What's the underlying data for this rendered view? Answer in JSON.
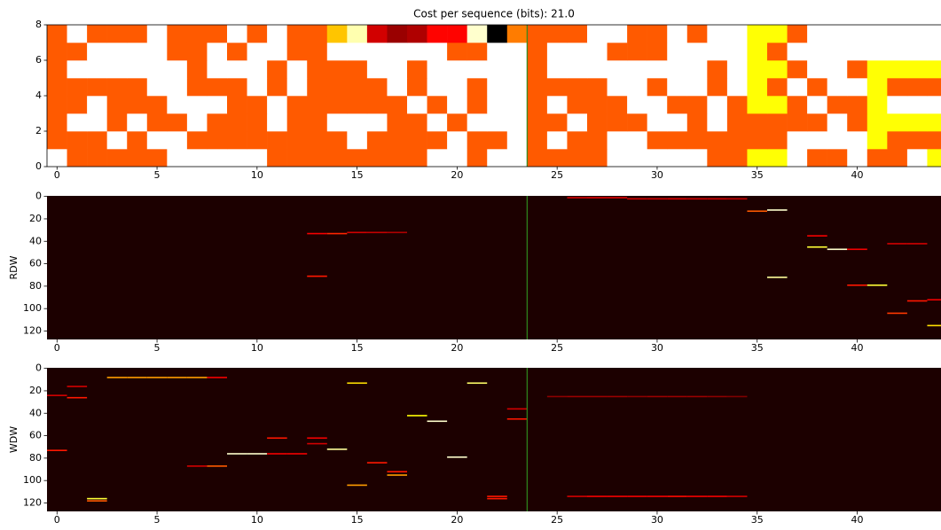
{
  "chart_data": [
    {
      "type": "heatmap",
      "title": "Cost per sequence (bits): 21.0",
      "colormap": "hot",
      "xlim": [
        -0.5,
        44.5
      ],
      "ylim": [
        0,
        8
      ],
      "xticks": [
        0,
        5,
        10,
        15,
        20,
        25,
        30,
        35,
        40
      ],
      "yticks": [
        0,
        2,
        4,
        6,
        8
      ],
      "vline": 23.5,
      "vline_color": "#2f8a1f",
      "frame": true,
      "z": [
        [
          1,
          0.5,
          0.5,
          0.5,
          0.5,
          0.5,
          1,
          1,
          1,
          1,
          1,
          0.5,
          0.5,
          0.5,
          0.5,
          0.5,
          0.5,
          0.5,
          0.5,
          1,
          1,
          0.5,
          1,
          1,
          0.5,
          0.5,
          0.5,
          0.5,
          1,
          1,
          1,
          1,
          1,
          0.5,
          0.5,
          0.75,
          0.75,
          1,
          0.5,
          0.5,
          1,
          0.5,
          0.5,
          1,
          0.75
        ],
        [
          0.5,
          0.5,
          0.5,
          1,
          0.5,
          1,
          1,
          0.5,
          0.5,
          0.5,
          0.5,
          0.5,
          0.5,
          0.5,
          0.5,
          1,
          0.5,
          0.5,
          0.5,
          0.5,
          1,
          0.5,
          0.5,
          1,
          0.5,
          1,
          0.5,
          0.5,
          1,
          1,
          0.5,
          0.5,
          0.5,
          0.5,
          0.5,
          0.5,
          0.5,
          1,
          1,
          1,
          1,
          0.75,
          0.5,
          0.5,
          0.5
        ],
        [
          0.5,
          1,
          1,
          0.5,
          1,
          0.5,
          0.5,
          1,
          0.5,
          0.5,
          0.5,
          1,
          0.5,
          0.5,
          1,
          1,
          1,
          0.5,
          0.5,
          1,
          0.5,
          1,
          1,
          1,
          0.5,
          0.5,
          1,
          0.5,
          0.5,
          0.5,
          1,
          1,
          0.5,
          1,
          0.5,
          0.5,
          0.5,
          0.5,
          0.5,
          1,
          0.5,
          0.75,
          0.75,
          0.75,
          0.75
        ],
        [
          0.5,
          0.5,
          1,
          0.5,
          0.5,
          0.5,
          1,
          1,
          1,
          0.5,
          0.5,
          1,
          0.5,
          0.5,
          0.5,
          0.5,
          0.5,
          0.5,
          1,
          0.5,
          1,
          0.5,
          1,
          1,
          0.5,
          1,
          0.5,
          0.5,
          0.5,
          1,
          1,
          0.5,
          0.5,
          1,
          0.5,
          0.75,
          0.75,
          0.5,
          1,
          0.5,
          0.5,
          0.75,
          1,
          1,
          1
        ],
        [
          0.5,
          0.5,
          0.5,
          0.5,
          0.5,
          1,
          1,
          0.5,
          0.5,
          0.5,
          1,
          0.5,
          1,
          0.5,
          0.5,
          0.5,
          0.5,
          1,
          0.5,
          1,
          1,
          0.5,
          1,
          1,
          0.5,
          0.5,
          0.5,
          0.5,
          1,
          1,
          0.5,
          1,
          1,
          0.5,
          1,
          0.75,
          0.5,
          1,
          0.5,
          1,
          1,
          0.75,
          0.5,
          0.5,
          0.5
        ],
        [
          0.5,
          1,
          1,
          1,
          1,
          1,
          1,
          0.5,
          1,
          1,
          1,
          0.5,
          1,
          0.5,
          0.5,
          0.5,
          1,
          1,
          0.5,
          1,
          1,
          1,
          1,
          1,
          0.5,
          1,
          1,
          1,
          1,
          1,
          1,
          1,
          1,
          0.5,
          1,
          0.75,
          0.75,
          0.5,
          1,
          1,
          0.5,
          0.75,
          0.75,
          0.75,
          0.75
        ],
        [
          0.5,
          0.5,
          1,
          1,
          1,
          1,
          0.5,
          0.5,
          1,
          0.5,
          1,
          1,
          0.5,
          0.5,
          1,
          1,
          1,
          1,
          1,
          1,
          0.5,
          0.5,
          1,
          1,
          0.5,
          1,
          1,
          1,
          0.5,
          0.5,
          0.5,
          1,
          1,
          1,
          1,
          0.75,
          0.5,
          1,
          1,
          1,
          1,
          1,
          1,
          1,
          1
        ],
        [
          0.5,
          1,
          0.5,
          0.5,
          0.5,
          1,
          0.5,
          0.5,
          0.5,
          1,
          0.5,
          1,
          0.5,
          0.5,
          0.66,
          0.92,
          0.3,
          0.22,
          0.25,
          0.37,
          0.37,
          0.95,
          0,
          0.55,
          0.5,
          0.5,
          0.5,
          1,
          1,
          0.5,
          0.5,
          1,
          0.5,
          1,
          1,
          0.75,
          0.75,
          0.5,
          1,
          1,
          1,
          1,
          1,
          1,
          1
        ]
      ]
    },
    {
      "type": "heatmap",
      "ylabel": "RDW",
      "colormap": "hot",
      "xlim": [
        -0.5,
        44.5
      ],
      "ylim": [
        127.5,
        -0.5
      ],
      "xticks": [
        0,
        5,
        10,
        15,
        20,
        25,
        30,
        35,
        40
      ],
      "yticks": [
        0,
        20,
        40,
        60,
        80,
        100,
        120
      ],
      "vline": 23.5,
      "vline_color": "#2f8a1f",
      "fill_value": 0.04,
      "cells": {
        "x": [
          26,
          27,
          28,
          29,
          30,
          31,
          32,
          33,
          34,
          35,
          36,
          13,
          14,
          15,
          16,
          17,
          13,
          36,
          38,
          39,
          40,
          38,
          42,
          43,
          40,
          41,
          43,
          44,
          42,
          44
        ],
        "y": [
          1,
          1,
          1,
          2,
          2,
          2,
          2,
          2,
          2,
          13,
          12,
          33,
          33,
          32,
          32,
          32,
          71,
          72,
          45,
          47,
          47,
          35,
          42,
          42,
          79,
          79,
          93,
          92,
          104,
          115
        ],
        "values": [
          0.3,
          0.32,
          0.32,
          0.3,
          0.3,
          0.32,
          0.3,
          0.3,
          0.28,
          0.5,
          0.95,
          0.35,
          0.42,
          0.3,
          0.28,
          0.25,
          0.4,
          0.9,
          0.8,
          0.95,
          0.35,
          0.35,
          0.3,
          0.3,
          0.4,
          0.8,
          0.4,
          0.35,
          0.45,
          0.7
        ]
      }
    },
    {
      "type": "heatmap",
      "ylabel": "WDW",
      "colormap": "hot",
      "xlim": [
        -0.5,
        44.5
      ],
      "ylim": [
        127.5,
        -0.5
      ],
      "xticks": [
        0,
        5,
        10,
        15,
        20,
        25,
        30,
        35,
        40
      ],
      "yticks": [
        0,
        20,
        40,
        60,
        80,
        100,
        120
      ],
      "vline": 23.5,
      "vline_color": "#2f8a1f",
      "fill_value": 0.04,
      "cells": {
        "x": [
          3,
          4,
          5,
          6,
          7,
          8,
          0,
          1,
          1,
          0,
          2,
          2,
          7,
          8,
          9,
          10,
          11,
          12,
          11,
          13,
          13,
          14,
          15,
          16,
          15,
          17,
          17,
          18,
          19,
          20,
          21,
          22,
          22,
          23,
          23,
          25,
          26,
          27,
          28,
          29,
          30,
          31,
          32,
          33,
          34,
          26,
          27,
          28,
          29,
          30,
          31,
          32,
          33,
          34
        ],
        "y": [
          8,
          8,
          8,
          8,
          8,
          8,
          24,
          26,
          16,
          73,
          116,
          118,
          87,
          87,
          76,
          76,
          76,
          76,
          62,
          62,
          67,
          72,
          13,
          84,
          104,
          92,
          95,
          42,
          47,
          79,
          13,
          114,
          116,
          45,
          36,
          25,
          25,
          25,
          25,
          25,
          25,
          25,
          25,
          25,
          25,
          114,
          114,
          114,
          114,
          114,
          114,
          114,
          114,
          114
        ],
        "values": [
          0.6,
          0.6,
          0.6,
          0.6,
          0.6,
          0.35,
          0.3,
          0.4,
          0.3,
          0.4,
          0.8,
          0.5,
          0.3,
          0.5,
          0.95,
          0.95,
          0.35,
          0.35,
          0.4,
          0.35,
          0.3,
          0.9,
          0.7,
          0.4,
          0.6,
          0.4,
          0.6,
          0.75,
          0.95,
          0.95,
          0.85,
          0.4,
          0.4,
          0.4,
          0.3,
          0.2,
          0.22,
          0.22,
          0.22,
          0.2,
          0.22,
          0.22,
          0.22,
          0.2,
          0.18,
          0.3,
          0.35,
          0.35,
          0.35,
          0.35,
          0.38,
          0.35,
          0.35,
          0.3
        ]
      }
    }
  ]
}
